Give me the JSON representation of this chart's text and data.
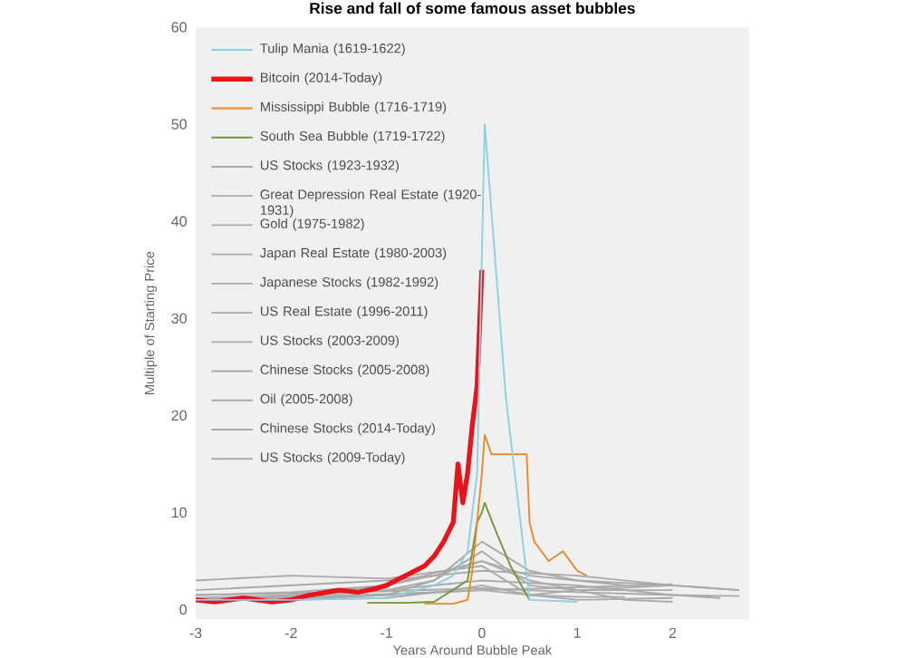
{
  "chart_data": {
    "type": "line",
    "title": "Rise and fall of some famous asset bubbles",
    "xlabel": "Years Around Bubble Peak",
    "ylabel": "Multiple of Starting Price",
    "xlim": [
      -3,
      2.8
    ],
    "ylim": [
      -1,
      60
    ],
    "xticks": [
      -3,
      -2,
      -1,
      0,
      1,
      2
    ],
    "yticks": [
      0,
      10,
      20,
      30,
      40,
      50,
      60
    ],
    "legend": "top left",
    "grid": false,
    "series": [
      {
        "name": "Tulip Mania (1619-1622)",
        "color": "#8ecfe0",
        "x": [
          -3,
          -2,
          -1,
          -0.5,
          -0.3,
          -0.15,
          -0.05,
          0.03,
          0.25,
          0.5,
          1
        ],
        "values": [
          1,
          1,
          1.2,
          2.5,
          3.5,
          6,
          14,
          50,
          22,
          1,
          0.8
        ]
      },
      {
        "name": "Bitcoin (2014-Today)",
        "color": "#e8141c",
        "x": [
          -3,
          -2.8,
          -2.5,
          -2.2,
          -2,
          -1.8,
          -1.5,
          -1.3,
          -1.1,
          -1,
          -0.9,
          -0.8,
          -0.7,
          -0.6,
          -0.5,
          -0.4,
          -0.3,
          -0.25,
          -0.2,
          -0.15,
          -0.1,
          -0.05,
          0
        ],
        "values": [
          1,
          0.8,
          1.2,
          0.8,
          1,
          1.5,
          2,
          1.8,
          2.2,
          2.5,
          3,
          3.5,
          4,
          4.5,
          5.5,
          7,
          9,
          15,
          11,
          14,
          19,
          23,
          35
        ]
      },
      {
        "name": "Mississippi Bubble (1716-1719)",
        "color": "#e58a2a",
        "x": [
          -0.6,
          -0.3,
          -0.15,
          -0.1,
          -0.05,
          0,
          0.03,
          0.1,
          0.3,
          0.47,
          0.5,
          0.55,
          0.7,
          0.85,
          1,
          1.1
        ],
        "values": [
          0.6,
          0.6,
          1,
          4,
          9,
          14,
          18,
          16,
          16,
          16,
          9,
          7,
          5,
          6,
          4,
          3.5
        ]
      },
      {
        "name": "South Sea Bubble (1719-1722)",
        "color": "#70963c",
        "x": [
          -1.2,
          -0.8,
          -0.5,
          -0.15,
          -0.05,
          0,
          0.03,
          0.15,
          0.3,
          0.5
        ],
        "values": [
          0.7,
          0.7,
          0.8,
          3,
          9,
          10,
          11,
          8,
          4.5,
          1
        ]
      },
      {
        "name": "US Stocks (1923-1932)",
        "color": "#aaaaaa",
        "x": [
          -3,
          -2,
          -1,
          -0.5,
          0,
          0.5,
          1,
          1.5,
          2
        ],
        "values": [
          1.5,
          1.8,
          2.5,
          3.5,
          5,
          3,
          2,
          1,
          0.8
        ]
      },
      {
        "name": "Great Depression Real Estate (1920-1931)",
        "color": "#aaaaaa",
        "x": [
          -3,
          -2,
          -1,
          0,
          1,
          2,
          2.5
        ],
        "values": [
          1.2,
          1.5,
          2,
          3,
          2.5,
          1.5,
          1.2
        ]
      },
      {
        "name": "Gold (1975-1982)",
        "color": "#aaaaaa",
        "x": [
          -3,
          -2,
          -1,
          -0.5,
          0,
          0.5,
          1,
          1.5
        ],
        "values": [
          1,
          1.3,
          2,
          3,
          7,
          4,
          3,
          2.5
        ]
      },
      {
        "name": "Japan Real Estate (1980-2003)",
        "color": "#aaaaaa",
        "x": [
          -3,
          -2,
          -1,
          0,
          1,
          2,
          2.7
        ],
        "values": [
          2,
          2.5,
          3,
          4,
          3.5,
          2.5,
          2
        ]
      },
      {
        "name": "Japanese Stocks (1982-1992)",
        "color": "#aaaaaa",
        "x": [
          -3,
          -2,
          -1,
          0,
          0.5,
          1,
          2,
          2.7
        ],
        "values": [
          1,
          1.5,
          2.5,
          5,
          3.5,
          3,
          2.5,
          2
        ]
      },
      {
        "name": "US Real Estate (1996-2011)",
        "color": "#aaaaaa",
        "x": [
          -3,
          -2,
          -1,
          0,
          1,
          2,
          2.7
        ],
        "values": [
          1.5,
          1.7,
          1.9,
          2.2,
          1.8,
          1.5,
          1.4
        ]
      },
      {
        "name": "US Stocks (2003-2009)",
        "color": "#aaaaaa",
        "x": [
          -3,
          -2,
          -1,
          0,
          1,
          2
        ],
        "values": [
          1,
          1.2,
          1.5,
          2,
          1,
          1.2
        ]
      },
      {
        "name": "Chinese Stocks (2005-2008)",
        "color": "#aaaaaa",
        "x": [
          -3,
          -2,
          -1,
          -0.5,
          0,
          0.5,
          1,
          2
        ],
        "values": [
          1,
          1,
          1.5,
          3,
          6,
          2.5,
          2,
          2
        ]
      },
      {
        "name": "Oil (2005-2008)",
        "color": "#aaaaaa",
        "x": [
          -3,
          -2,
          -1,
          0,
          0.5,
          1,
          2
        ],
        "values": [
          3,
          3.5,
          3.2,
          4.5,
          1.5,
          2,
          2.5
        ]
      },
      {
        "name": "Chinese Stocks (2014-Today)",
        "color": "#aaaaaa",
        "x": [
          -3,
          -2,
          -1,
          -0.3,
          0,
          0.5,
          1,
          1.5
        ],
        "values": [
          1,
          1,
          1.2,
          2,
          2.5,
          1.5,
          1.3,
          1.3
        ]
      },
      {
        "name": "US Stocks (2009-Today)",
        "color": "#aaaaaa",
        "x": [
          -3,
          -2,
          -1,
          0,
          1,
          2
        ],
        "values": [
          1,
          1.3,
          1.6,
          2,
          2.3,
          2.6
        ]
      }
    ]
  }
}
